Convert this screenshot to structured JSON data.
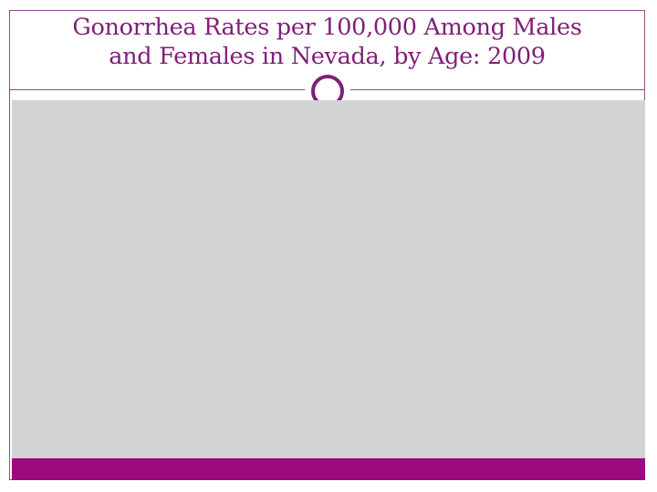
{
  "slide": {
    "title_line1": "Gonorrhea Rates per 100,000 Among Males",
    "title_line2": "and Females in Nevada, by Age: 2009"
  },
  "theme": {
    "accent_color": "#7f1e78",
    "footer_color": "#9c0a7c",
    "panel_color": "#d3d3d3",
    "border_color": "#8e4f86"
  }
}
